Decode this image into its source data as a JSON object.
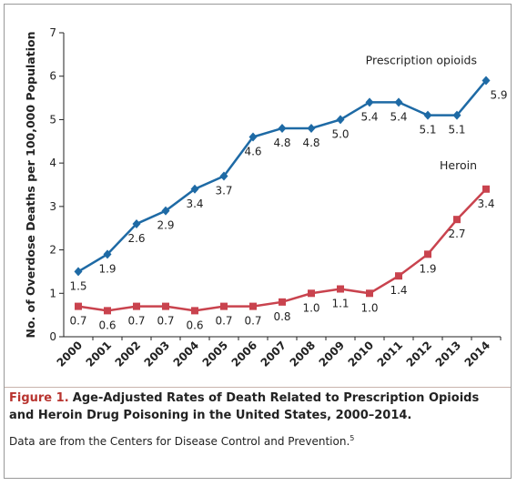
{
  "chart_data": {
    "type": "line",
    "y_label": "No. of Overdose Deaths per 100,000 Population",
    "categories": [
      "2000",
      "2001",
      "2002",
      "2003",
      "2004",
      "2005",
      "2006",
      "2007",
      "2008",
      "2009",
      "2010",
      "2011",
      "2012",
      "2013",
      "2014"
    ],
    "series": [
      {
        "name": "Prescription opioids",
        "color": "#1e6aa5",
        "marker": "diamond",
        "values": [
          1.5,
          1.9,
          2.6,
          2.9,
          3.4,
          3.7,
          4.6,
          4.8,
          4.8,
          5.0,
          5.4,
          5.4,
          5.1,
          5.1,
          5.9
        ],
        "value_labels": [
          "1.5",
          "1.9",
          "2.6",
          "2.9",
          "3.4",
          "3.7",
          "4.6",
          "4.8",
          "4.8",
          "5.0",
          "5.4",
          "5.4",
          "5.1",
          "5.1",
          "5.9"
        ]
      },
      {
        "name": "Heroin",
        "color": "#c9434e",
        "marker": "square",
        "values": [
          0.7,
          0.6,
          0.7,
          0.7,
          0.6,
          0.7,
          0.7,
          0.8,
          1.0,
          1.1,
          1.0,
          1.4,
          1.9,
          2.7,
          3.4
        ],
        "value_labels": [
          "0.7",
          "0.6",
          "0.7",
          "0.7",
          "0.6",
          "0.7",
          "0.7",
          "0.8",
          "1.0",
          "1.1",
          "1.0",
          "1.4",
          "1.9",
          "2.7",
          "3.4"
        ]
      }
    ],
    "ylim": [
      0,
      7
    ],
    "yticks": [
      0,
      1,
      2,
      3,
      4,
      5,
      6,
      7
    ],
    "grid": false,
    "caption": {
      "label": "Figure 1.",
      "title": "Age-Adjusted Rates of Death Related to Prescription Opioids and Heroin Drug Poisoning in the United States, 2000–2014.",
      "note": "Data are from the Centers for Disease Control and Prevention.",
      "note_ref": "5"
    }
  }
}
